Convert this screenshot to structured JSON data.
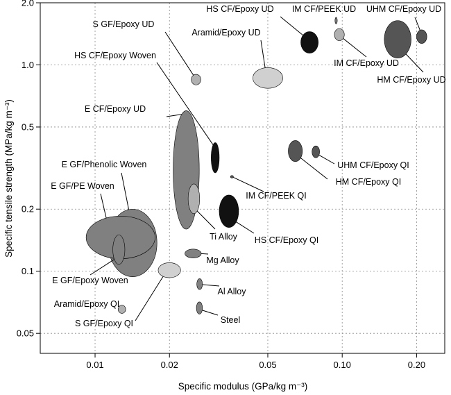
{
  "chart_data": {
    "type": "scatter",
    "title": "",
    "xlabel": "Specific modulus (GPa/kg m⁻³)",
    "ylabel": "Specific tensile strength (MPa/kg m⁻³)",
    "xscale": "log",
    "yscale": "log",
    "xlim": [
      0.006,
      0.26
    ],
    "ylim": [
      0.04,
      2.0
    ],
    "xticks": [
      {
        "v": 0.01,
        "label": "0.01"
      },
      {
        "v": 0.02,
        "label": "0.02"
      },
      {
        "v": 0.05,
        "label": "0.05"
      },
      {
        "v": 0.1,
        "label": "0.10"
      },
      {
        "v": 0.2,
        "label": "0.20"
      }
    ],
    "yticks": [
      {
        "v": 0.05,
        "label": "0.05"
      },
      {
        "v": 0.1,
        "label": "0.1"
      },
      {
        "v": 0.2,
        "label": "0.2"
      },
      {
        "v": 0.5,
        "label": "0.5"
      },
      {
        "v": 1.0,
        "label": "1.0"
      },
      {
        "v": 2.0,
        "label": "2.0"
      }
    ],
    "grid": true,
    "colors": {
      "black": "#111111",
      "dark": "#555555",
      "medium": "#808080",
      "light": "#b0b0b0",
      "pale": "#d0d0d0"
    },
    "materials": [
      {
        "name": "HS CF/Epoxy UD",
        "x_range": [
          0.068,
          0.08
        ],
        "y_range": [
          1.14,
          1.45
        ],
        "shade": "black"
      },
      {
        "name": "IM CF/PEEK UD",
        "x_range": [
          0.0935,
          0.0955
        ],
        "y_range": [
          1.58,
          1.7
        ],
        "shade": "medium"
      },
      {
        "name": "UHM CF/Epoxy UD",
        "x_range": [
          0.2,
          0.22
        ],
        "y_range": [
          1.27,
          1.48
        ],
        "shade": "dark"
      },
      {
        "name": "S GF/Epoxy UD",
        "x_range": [
          0.0245,
          0.0268
        ],
        "y_range": [
          0.8,
          0.9
        ],
        "shade": "light"
      },
      {
        "name": "Aramid/Epoxy UD",
        "x_range": [
          0.0435,
          0.0575
        ],
        "y_range": [
          0.77,
          0.97
        ],
        "shade": "pale"
      },
      {
        "name": "IM CF/Epoxy UD",
        "x_range": [
          0.093,
          0.102
        ],
        "y_range": [
          1.31,
          1.5
        ],
        "shade": "light"
      },
      {
        "name": "HM CF/Epoxy UD",
        "x_range": [
          0.148,
          0.19
        ],
        "y_range": [
          1.08,
          1.64
        ],
        "shade": "dark"
      },
      {
        "name": "HS CF/Epoxy Woven",
        "x_range": [
          0.0295,
          0.0318
        ],
        "y_range": [
          0.3,
          0.42
        ],
        "shade": "black"
      },
      {
        "name": "E CF/Epoxy UD",
        "x_range": [
          0.0207,
          0.0264
        ],
        "y_range": [
          0.16,
          0.6
        ],
        "shade": "medium"
      },
      {
        "name": "E GF/Phenolic Woven",
        "x_range": [
          0.0113,
          0.0178
        ],
        "y_range": [
          0.094,
          0.2
        ],
        "shade": "medium"
      },
      {
        "name": "E GF/PE Woven",
        "x_range": [
          0.0092,
          0.0175
        ],
        "y_range": [
          0.115,
          0.185
        ],
        "shade": "medium"
      },
      {
        "name": "E GF/Epoxy Woven",
        "x_range": [
          0.0118,
          0.0132
        ],
        "y_range": [
          0.108,
          0.15
        ],
        "shade": "medium"
      },
      {
        "name": "Aramid/Epoxy QI",
        "x_range": [
          0.0124,
          0.0133
        ],
        "y_range": [
          0.0625,
          0.0685
        ],
        "shade": "light"
      },
      {
        "name": "S GF/Epoxy QI",
        "x_range": [
          0.018,
          0.0222
        ],
        "y_range": [
          0.093,
          0.11
        ],
        "shade": "pale"
      },
      {
        "name": "UHM CF/Epoxy QI",
        "x_range": [
          0.0755,
          0.081
        ],
        "y_range": [
          0.355,
          0.405
        ],
        "shade": "dark"
      },
      {
        "name": "HM CF/Epoxy QI",
        "x_range": [
          0.0605,
          0.069
        ],
        "y_range": [
          0.34,
          0.43
        ],
        "shade": "dark"
      },
      {
        "name": "IM CF/PEEK QI",
        "x_range": [
          0.0353,
          0.0363
        ],
        "y_range": [
          0.283,
          0.291
        ],
        "shade": "dark"
      },
      {
        "name": "Ti Alloy",
        "x_range": [
          0.0238,
          0.0265
        ],
        "y_range": [
          0.19,
          0.265
        ],
        "shade": "light"
      },
      {
        "name": "HS CF/Epoxy QI",
        "x_range": [
          0.0318,
          0.0381
        ],
        "y_range": [
          0.163,
          0.234
        ],
        "shade": "black"
      },
      {
        "name": "Mg Alloy",
        "x_range": [
          0.0231,
          0.0269
        ],
        "y_range": [
          0.116,
          0.128
        ],
        "shade": "medium"
      },
      {
        "name": "Al Alloy",
        "x_range": [
          0.0258,
          0.0272
        ],
        "y_range": [
          0.0815,
          0.092
        ],
        "shade": "medium"
      },
      {
        "name": "Steel",
        "x_range": [
          0.0257,
          0.0272
        ],
        "y_range": [
          0.062,
          0.071
        ],
        "shade": "medium"
      }
    ]
  }
}
